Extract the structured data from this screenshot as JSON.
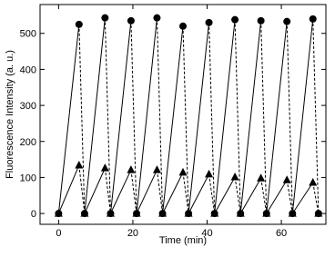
{
  "chart_data": {
    "type": "line",
    "x_label": "Time (min)",
    "y_label": "Fluorescence Intensity (a. u.)",
    "xlim": [
      -5,
      72
    ],
    "xticks": [
      0,
      20,
      40,
      60
    ],
    "ylim": [
      -30,
      580
    ],
    "yticks": [
      0,
      100,
      200,
      300,
      400,
      500
    ],
    "series": [
      {
        "marker": "circle",
        "color": "#000000",
        "x": [
          0,
          5.5,
          7,
          12.5,
          14,
          19.5,
          21,
          26.5,
          28,
          33.5,
          35,
          40.5,
          42,
          47.5,
          49,
          54.5,
          56,
          61.5,
          63,
          68.5,
          70
        ],
        "values": [
          0,
          525,
          0,
          543,
          0,
          535,
          0,
          543,
          0,
          520,
          0,
          530,
          0,
          538,
          0,
          535,
          0,
          533,
          0,
          540,
          0
        ]
      },
      {
        "marker": "triangle",
        "color": "#000000",
        "x": [
          0,
          5.5,
          7,
          12.5,
          14,
          19.5,
          21,
          26.5,
          28,
          33.5,
          35,
          40.5,
          42,
          47.5,
          49,
          54.5,
          56,
          61.5,
          63,
          68.5,
          70
        ],
        "values": [
          0,
          134,
          0,
          126,
          0,
          121,
          0,
          121,
          0,
          114,
          0,
          109,
          0,
          101,
          0,
          98,
          0,
          93,
          0,
          86,
          0
        ]
      }
    ]
  }
}
